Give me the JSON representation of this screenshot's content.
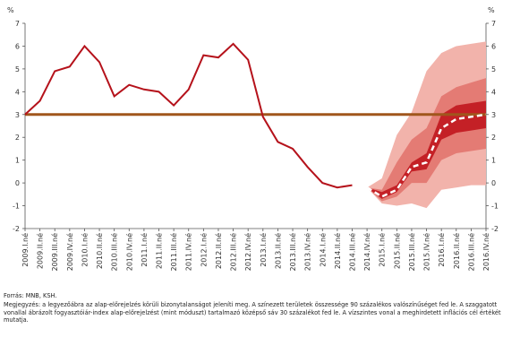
{
  "chart_data": {
    "type": "fan",
    "y_unit_left": "%",
    "y_unit_right": "%",
    "categories": [
      "2009.I.né",
      "2009.II.né",
      "2009.III.né",
      "2009.IV.né",
      "2010.I.né",
      "2010.II.né",
      "2010.III.né",
      "2010.IV.né",
      "2011.I.né",
      "2011.II.né",
      "2011.III.né",
      "2011.IV.né",
      "2012.I.né",
      "2012.II.né",
      "2012.III.né",
      "2012.IV.né",
      "2013.I.né",
      "2013.II.né",
      "2013.III.né",
      "2013.IV.né",
      "2014.I.né",
      "2014.II.né",
      "2014.III.né",
      "2014.IV.né",
      "2015.I.né",
      "2015.II.né",
      "2015.III.né",
      "2015.IV.né",
      "2016.I.né",
      "2016.II.né",
      "2016.III.né",
      "2016.IV.né"
    ],
    "actual": {
      "color": "#b5121b",
      "values": [
        3.0,
        3.6,
        4.9,
        5.1,
        6.0,
        5.3,
        3.8,
        4.3,
        4.1,
        4.0,
        3.4,
        4.1,
        5.6,
        5.5,
        6.1,
        5.4,
        2.9,
        1.8,
        1.5,
        0.7,
        0.0,
        -0.2,
        -0.1,
        null,
        null,
        null,
        null,
        null,
        null,
        null,
        null,
        null
      ]
    },
    "forecast": {
      "color": "#ffffff",
      "values": [
        null,
        null,
        null,
        null,
        null,
        null,
        null,
        null,
        null,
        null,
        null,
        null,
        null,
        null,
        null,
        null,
        null,
        null,
        null,
        null,
        null,
        null,
        null,
        -0.2,
        -0.6,
        -0.3,
        0.7,
        0.9,
        2.4,
        2.8,
        2.9,
        3.0
      ]
    },
    "fan": [
      {
        "color": "#f2b3ab",
        "low": [
          null,
          null,
          null,
          null,
          null,
          null,
          null,
          null,
          null,
          null,
          null,
          null,
          null,
          null,
          null,
          null,
          null,
          null,
          null,
          null,
          null,
          null,
          null,
          -0.2,
          -0.9,
          -1.0,
          -0.9,
          -1.1,
          -0.3,
          -0.2,
          -0.1,
          -0.1
        ],
        "high": [
          null,
          null,
          null,
          null,
          null,
          null,
          null,
          null,
          null,
          null,
          null,
          null,
          null,
          null,
          null,
          null,
          null,
          null,
          null,
          null,
          null,
          null,
          null,
          -0.2,
          0.2,
          2.1,
          3.1,
          4.9,
          5.7,
          6.0,
          6.1,
          6.2
        ]
      },
      {
        "color": "#e47b74",
        "low": [
          null,
          null,
          null,
          null,
          null,
          null,
          null,
          null,
          null,
          null,
          null,
          null,
          null,
          null,
          null,
          null,
          null,
          null,
          null,
          null,
          null,
          null,
          null,
          -0.2,
          -0.8,
          -0.6,
          0.0,
          0.0,
          1.0,
          1.3,
          1.4,
          1.5
        ],
        "high": [
          null,
          null,
          null,
          null,
          null,
          null,
          null,
          null,
          null,
          null,
          null,
          null,
          null,
          null,
          null,
          null,
          null,
          null,
          null,
          null,
          null,
          null,
          null,
          -0.2,
          -0.3,
          0.9,
          1.9,
          2.4,
          3.8,
          4.2,
          4.4,
          4.6
        ]
      },
      {
        "color": "#c42026",
        "low": [
          null,
          null,
          null,
          null,
          null,
          null,
          null,
          null,
          null,
          null,
          null,
          null,
          null,
          null,
          null,
          null,
          null,
          null,
          null,
          null,
          null,
          null,
          null,
          -0.2,
          -0.7,
          -0.4,
          0.5,
          0.6,
          1.9,
          2.2,
          2.3,
          2.4
        ],
        "high": [
          null,
          null,
          null,
          null,
          null,
          null,
          null,
          null,
          null,
          null,
          null,
          null,
          null,
          null,
          null,
          null,
          null,
          null,
          null,
          null,
          null,
          null,
          null,
          -0.2,
          -0.4,
          -0.1,
          0.9,
          1.3,
          3.0,
          3.4,
          3.5,
          3.6
        ]
      }
    ],
    "target": {
      "value": 3,
      "color": "#a0561c"
    },
    "ylim": [
      -2,
      7
    ],
    "yticks": [
      -2,
      -1,
      0,
      1,
      2,
      3,
      4,
      5,
      6,
      7
    ],
    "source": "Forrás: MNB, KSH.",
    "note": "Megjegyzés: a legyezőábra az alap-előrejelzés körüli bizonytalanságot jeleníti meg. A színezett területek összessége 90 százalékos valószínűséget fed le. A szaggatott vonallal ábrázolt fogyasztóiár-index alap-előrejelzést (mint móduszt) tartalmazó középső sáv 30 százalékot fed le. A vízszintes vonal a meghirdetett inflációs cél értékét mutatja."
  }
}
